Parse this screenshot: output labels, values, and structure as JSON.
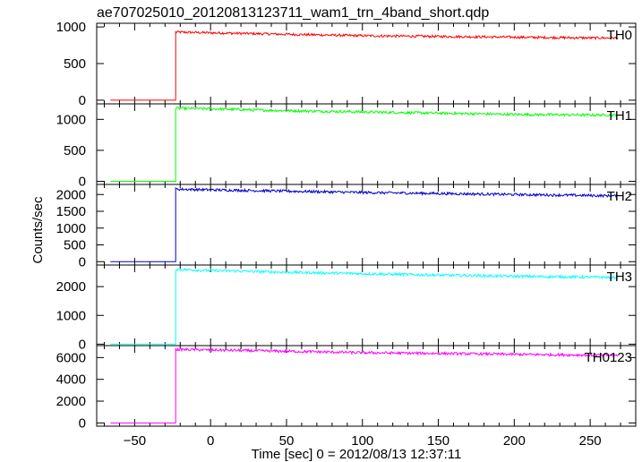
{
  "chart_data": {
    "type": "line",
    "title": "ae707025010_20120813123711_wam1_trn_4band_short.qdp",
    "xlabel": "Time [sec] 0 = 2012/08/13 12:37:11",
    "ylabel": "Counts/sec",
    "xlim": [
      -75,
      280
    ],
    "xticks": [
      -50,
      0,
      50,
      100,
      150,
      200,
      250
    ],
    "grid": false,
    "trigger_time": -23,
    "data_start": -66,
    "data_end": 268,
    "panels": [
      {
        "name": "TH0",
        "color": "#ff0000",
        "ylim": [
          -50,
          1050
        ],
        "yticks": [
          0,
          500,
          1000
        ],
        "pre_level": 0,
        "series": {
          "x": [
            -23,
            0,
            50,
            100,
            150,
            200,
            250,
            268
          ],
          "y": [
            930,
            920,
            900,
            880,
            870,
            860,
            850,
            850
          ]
        }
      },
      {
        "name": "TH1",
        "color": "#00ff00",
        "ylim": [
          -50,
          1250
        ],
        "yticks": [
          0,
          500,
          1000
        ],
        "pre_level": 0,
        "series": {
          "x": [
            -23,
            0,
            50,
            100,
            150,
            200,
            250,
            268
          ],
          "y": [
            1180,
            1170,
            1140,
            1120,
            1100,
            1080,
            1070,
            1070
          ]
        }
      },
      {
        "name": "TH2",
        "color": "#0000cc",
        "ylim": [
          -100,
          2300
        ],
        "yticks": [
          0,
          500,
          1000,
          1500,
          2000
        ],
        "pre_level": 0,
        "series": {
          "x": [
            -23,
            0,
            50,
            100,
            150,
            200,
            250,
            268
          ],
          "y": [
            2160,
            2140,
            2100,
            2060,
            2030,
            2000,
            1970,
            1960
          ]
        }
      },
      {
        "name": "TH3",
        "color": "#00ffff",
        "ylim": [
          -50,
          2750
        ],
        "yticks": [
          0,
          1000,
          2000
        ],
        "pre_level": 0,
        "series": {
          "x": [
            -23,
            0,
            50,
            100,
            150,
            200,
            250,
            268
          ],
          "y": [
            2600,
            2560,
            2500,
            2450,
            2400,
            2360,
            2330,
            2320
          ]
        }
      },
      {
        "name": "TH0123",
        "color": "#ff00ff",
        "ylim": [
          -300,
          7100
        ],
        "yticks": [
          0,
          2000,
          4000,
          6000
        ],
        "pre_level": 0,
        "series": {
          "x": [
            -23,
            0,
            50,
            100,
            150,
            200,
            250,
            268
          ],
          "y": [
            6750,
            6700,
            6580,
            6450,
            6380,
            6300,
            6230,
            6200
          ]
        }
      }
    ]
  }
}
